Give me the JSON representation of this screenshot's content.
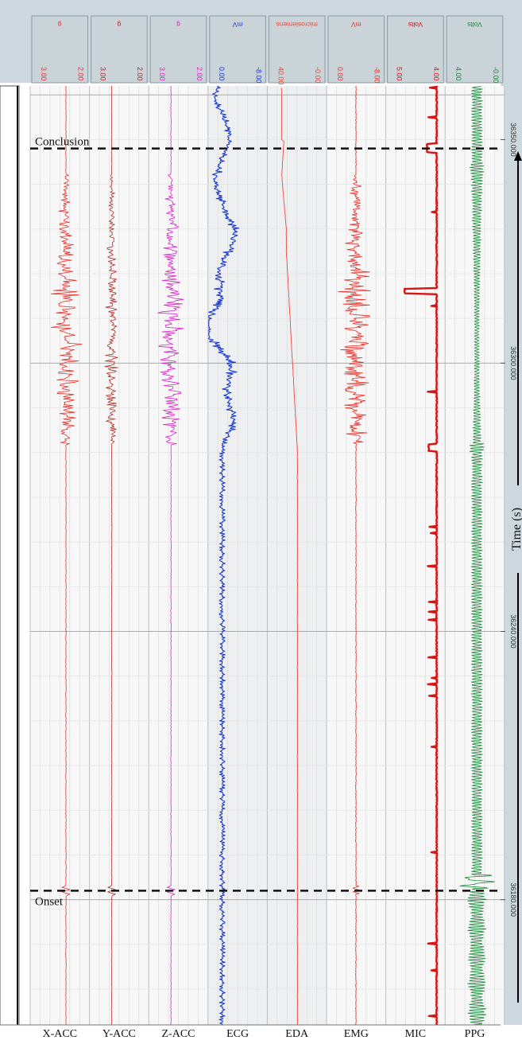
{
  "chart_data": {
    "type": "line",
    "orientation": "vertical-time",
    "time_axis": {
      "label": "Time (s)",
      "ticks": [
        36180.0,
        36240.0,
        36300.0,
        36350.0
      ],
      "tick_labels": [
        "36180.000",
        "36240.000",
        "36300.000",
        "36350.000"
      ],
      "range": [
        36152,
        36362
      ],
      "direction": "bottom-to-top"
    },
    "markers": [
      {
        "label": "Onset",
        "time": 36182
      },
      {
        "label": "Conclusion",
        "time": 36348
      }
    ],
    "channels": [
      {
        "name": "X-ACC",
        "unit": "g",
        "scale_labels": [
          "3.00",
          "2.00"
        ],
        "color": "#e8302a"
      },
      {
        "name": "Y-ACC",
        "unit": "g",
        "scale_labels": [
          "3.00",
          "2.00"
        ],
        "color": "#b22a22"
      },
      {
        "name": "Z-ACC",
        "unit": "g",
        "scale_labels": [
          "3.00",
          "2.00"
        ],
        "color": "#e020c8"
      },
      {
        "name": "ECG",
        "unit": "mV",
        "scale_labels": [
          "0.00",
          "-8.00"
        ],
        "color": "#1a3ad0"
      },
      {
        "name": "EDA",
        "unit": "microsiemens",
        "scale_labels": [
          "40.00",
          "-0.00"
        ],
        "color": "#e84a3a"
      },
      {
        "name": "EMG",
        "unit": "mV",
        "scale_labels": [
          "0.00",
          "-8.00"
        ],
        "color": "#e8302a"
      },
      {
        "name": "MIC",
        "unit": "Volts",
        "scale_labels": [
          "5.00",
          "4.00"
        ],
        "color": "#d81414"
      },
      {
        "name": "PPG",
        "unit": "Volts",
        "scale_labels": [
          "4.00",
          "-0.00"
        ],
        "color": "#1a8a3a"
      }
    ],
    "title": "",
    "grid": true
  }
}
